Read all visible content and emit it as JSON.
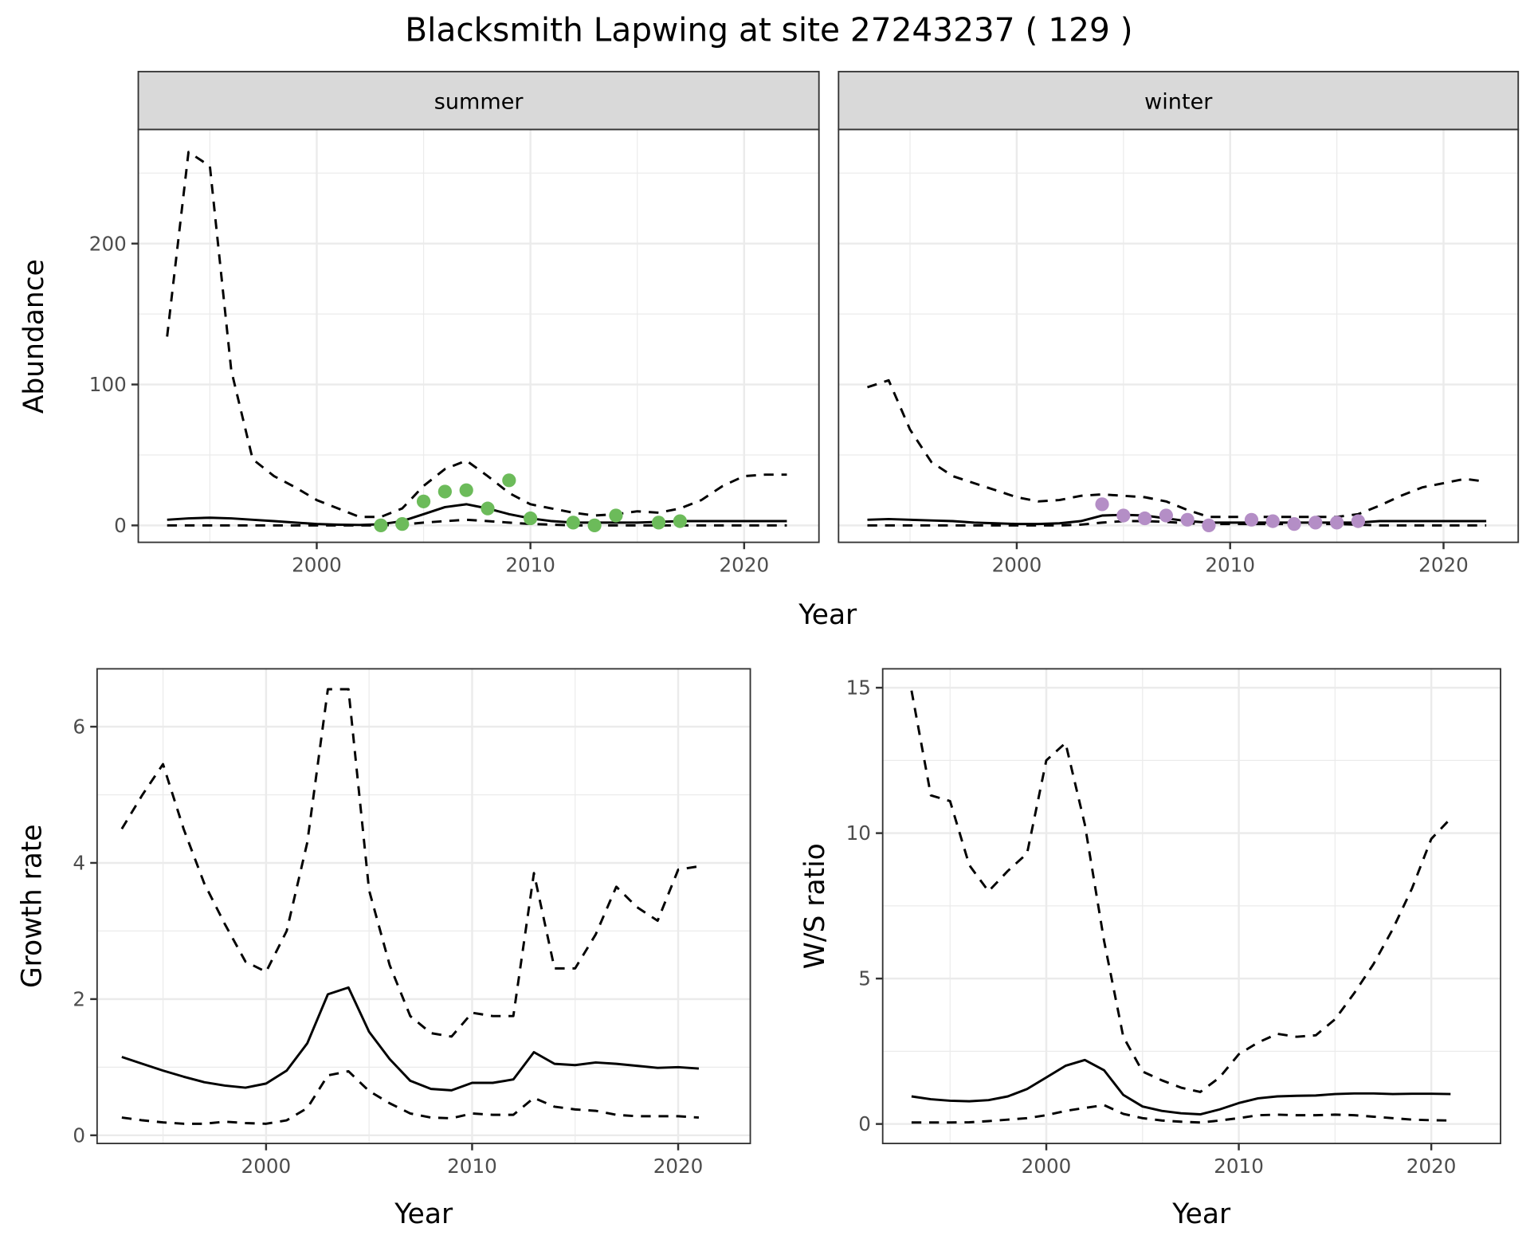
{
  "title": "Blacksmith Lapwing at site 27243237 ( 129 )",
  "colors": {
    "summer_points": "#6cbb5a",
    "winter_points": "#b48ec6",
    "line": "#000000",
    "grid": "#ebebeb",
    "strip": "#d9d9d9"
  },
  "chart_data": [
    {
      "type": "line",
      "panel": "summer",
      "strip_label": "summer",
      "xlabel": "Year",
      "ylabel": "Abundance",
      "xlim": [
        1991.65,
        2023.5
      ],
      "ylim": [
        -12,
        281
      ],
      "xticks": [
        2000,
        2010,
        2020
      ],
      "yticks": [
        0,
        100,
        200
      ],
      "x": [
        1993,
        1994,
        1995,
        1996,
        1997,
        1998,
        1999,
        2000,
        2001,
        2002,
        2003,
        2004,
        2005,
        2006,
        2007,
        2008,
        2009,
        2010,
        2011,
        2012,
        2013,
        2014,
        2015,
        2016,
        2017,
        2018,
        2019,
        2020,
        2021,
        2022
      ],
      "series": [
        {
          "name": "upper",
          "style": "dashed",
          "values": [
            134,
            265,
            255,
            110,
            47,
            35,
            27,
            18,
            12,
            6,
            6,
            12,
            28,
            40,
            46,
            35,
            23,
            15,
            12,
            9,
            7,
            8,
            10,
            9,
            12,
            18,
            28,
            35,
            36,
            36
          ]
        },
        {
          "name": "mean",
          "style": "solid",
          "values": [
            4,
            5,
            5.5,
            5,
            4,
            3,
            2,
            1,
            0.5,
            0.3,
            0.8,
            3,
            8,
            13,
            15,
            12,
            8,
            5,
            3,
            2,
            2,
            2,
            2,
            2.5,
            3,
            3,
            3,
            3,
            3,
            3
          ]
        },
        {
          "name": "lower",
          "style": "dashed",
          "values": [
            0,
            0,
            0,
            0,
            0,
            0,
            0,
            0,
            0,
            0,
            0,
            0.5,
            2,
            3,
            4,
            3,
            2,
            1,
            0.5,
            0,
            0,
            0,
            0,
            0,
            0,
            0,
            0,
            0,
            0,
            0
          ]
        }
      ],
      "points": {
        "x": [
          2003,
          2004,
          2005,
          2006,
          2007,
          2008,
          2009,
          2010,
          2012,
          2013,
          2014,
          2016,
          2017
        ],
        "y": [
          0,
          1,
          17,
          24,
          25,
          12,
          32,
          5,
          2,
          0,
          7,
          2,
          3
        ]
      }
    },
    {
      "type": "line",
      "panel": "winter",
      "strip_label": "winter",
      "xlabel": "Year",
      "ylabel": "Abundance",
      "xlim": [
        1991.65,
        2023.5
      ],
      "ylim": [
        -12,
        281
      ],
      "xticks": [
        2000,
        2010,
        2020
      ],
      "yticks": [
        0,
        100,
        200
      ],
      "x": [
        1993,
        1994,
        1995,
        1996,
        1997,
        1998,
        1999,
        2000,
        2001,
        2002,
        2003,
        2004,
        2005,
        2006,
        2007,
        2008,
        2009,
        2010,
        2011,
        2012,
        2013,
        2014,
        2015,
        2016,
        2017,
        2018,
        2019,
        2020,
        2021,
        2022
      ],
      "series": [
        {
          "name": "upper",
          "style": "dashed",
          "values": [
            98,
            103,
            68,
            45,
            35,
            30,
            25,
            20,
            17,
            18,
            21,
            22,
            21,
            20,
            17,
            11,
            6,
            6,
            6,
            6,
            6,
            6,
            6,
            8,
            14,
            21,
            27,
            30,
            33,
            31
          ]
        },
        {
          "name": "mean",
          "style": "solid",
          "values": [
            4,
            4.5,
            4,
            3.5,
            3,
            2,
            1.5,
            1,
            1,
            1.5,
            3,
            7,
            7.5,
            7,
            5,
            3,
            2,
            2,
            2,
            2,
            2,
            2,
            2,
            2,
            3,
            3,
            3,
            3,
            3,
            3
          ]
        },
        {
          "name": "lower",
          "style": "dashed",
          "values": [
            0,
            0,
            0,
            0,
            0,
            0,
            0,
            0,
            0,
            0,
            0.5,
            2,
            3,
            3,
            2.5,
            1.5,
            1,
            1,
            1,
            1,
            1,
            1,
            1,
            0.5,
            0,
            0,
            0,
            0,
            0,
            0
          ]
        }
      ],
      "points": {
        "x": [
          2004,
          2005,
          2006,
          2007,
          2008,
          2009,
          2011,
          2012,
          2013,
          2014,
          2015,
          2016
        ],
        "y": [
          15,
          7,
          5,
          7,
          4,
          0,
          4,
          3,
          1,
          2,
          2,
          3
        ]
      }
    },
    {
      "type": "line",
      "panel": "growth",
      "xlabel": "Year",
      "ylabel": "Growth rate",
      "xlim": [
        1991.8,
        2023.5
      ],
      "ylim": [
        -0.12,
        6.85
      ],
      "xticks": [
        2000,
        2010,
        2020
      ],
      "yticks": [
        0,
        2,
        4,
        6
      ],
      "x": [
        1993,
        1994,
        1995,
        1996,
        1997,
        1998,
        1999,
        2000,
        2001,
        2002,
        2003,
        2004,
        2005,
        2006,
        2007,
        2008,
        2009,
        2010,
        2011,
        2012,
        2013,
        2014,
        2015,
        2016,
        2017,
        2018,
        2019,
        2020,
        2021
      ],
      "series": [
        {
          "name": "upper",
          "style": "dashed",
          "values": [
            4.5,
            5.0,
            5.45,
            4.5,
            3.7,
            3.1,
            2.55,
            2.4,
            3.0,
            4.3,
            6.55,
            6.55,
            3.6,
            2.5,
            1.75,
            1.5,
            1.45,
            1.8,
            1.75,
            1.75,
            3.85,
            2.45,
            2.45,
            2.95,
            3.65,
            3.35,
            3.15,
            3.9,
            3.95
          ]
        },
        {
          "name": "mean",
          "style": "solid",
          "values": [
            1.15,
            1.05,
            0.95,
            0.86,
            0.78,
            0.73,
            0.7,
            0.76,
            0.95,
            1.35,
            2.07,
            2.17,
            1.52,
            1.12,
            0.8,
            0.68,
            0.66,
            0.77,
            0.77,
            0.82,
            1.22,
            1.05,
            1.03,
            1.07,
            1.05,
            1.02,
            0.99,
            1.0,
            0.98
          ]
        },
        {
          "name": "lower",
          "style": "dashed",
          "values": [
            0.26,
            0.22,
            0.19,
            0.17,
            0.17,
            0.2,
            0.18,
            0.17,
            0.22,
            0.4,
            0.88,
            0.94,
            0.65,
            0.47,
            0.32,
            0.26,
            0.25,
            0.32,
            0.3,
            0.3,
            0.55,
            0.42,
            0.38,
            0.36,
            0.3,
            0.28,
            0.28,
            0.28,
            0.26
          ]
        }
      ]
    },
    {
      "type": "line",
      "panel": "ws",
      "xlabel": "Year",
      "ylabel": "W/S ratio",
      "xlim": [
        1991.5,
        2023.6
      ],
      "ylim": [
        -0.67,
        15.65
      ],
      "xticks": [
        2000,
        2010,
        2020
      ],
      "yticks": [
        0,
        5,
        10,
        15
      ],
      "x": [
        1993,
        1994,
        1995,
        1996,
        1997,
        1998,
        1999,
        2000,
        2001,
        2002,
        2003,
        2004,
        2005,
        2006,
        2007,
        2008,
        2009,
        2010,
        2011,
        2012,
        2013,
        2014,
        2015,
        2016,
        2017,
        2018,
        2019,
        2020,
        2021
      ],
      "series": [
        {
          "name": "upper",
          "style": "dashed",
          "values": [
            14.9,
            11.3,
            11.1,
            8.9,
            8.0,
            8.7,
            9.3,
            12.5,
            13.1,
            10.3,
            6.3,
            3.0,
            1.8,
            1.5,
            1.25,
            1.1,
            1.6,
            2.4,
            2.8,
            3.1,
            3.0,
            3.05,
            3.6,
            4.5,
            5.5,
            6.7,
            8.1,
            9.8,
            10.5
          ]
        },
        {
          "name": "mean",
          "style": "solid",
          "values": [
            0.95,
            0.85,
            0.8,
            0.78,
            0.82,
            0.95,
            1.2,
            1.6,
            2.0,
            2.2,
            1.85,
            1.0,
            0.6,
            0.45,
            0.37,
            0.33,
            0.5,
            0.72,
            0.88,
            0.95,
            0.97,
            0.98,
            1.03,
            1.05,
            1.05,
            1.03,
            1.04,
            1.04,
            1.03
          ]
        },
        {
          "name": "lower",
          "style": "dashed",
          "values": [
            0.05,
            0.05,
            0.05,
            0.06,
            0.1,
            0.15,
            0.2,
            0.3,
            0.45,
            0.55,
            0.65,
            0.35,
            0.2,
            0.12,
            0.08,
            0.05,
            0.12,
            0.2,
            0.3,
            0.32,
            0.3,
            0.3,
            0.32,
            0.3,
            0.25,
            0.2,
            0.15,
            0.13,
            0.12
          ]
        }
      ]
    }
  ]
}
